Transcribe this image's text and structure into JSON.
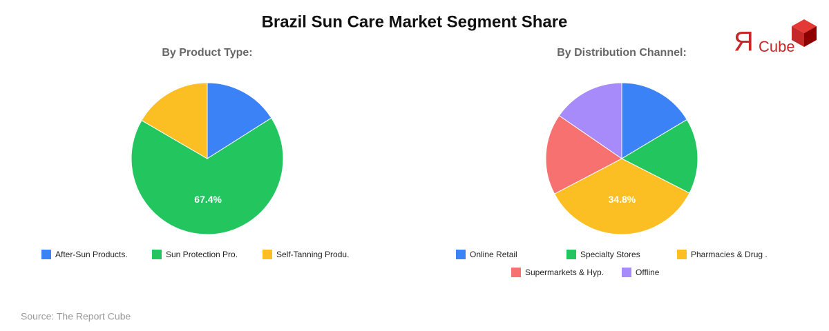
{
  "title": "Brazil Sun Care Market Segment Share",
  "source": "Source: The Report Cube",
  "logo": {
    "mark": "Я",
    "text": "Cube"
  },
  "chart_data": [
    {
      "type": "pie",
      "subtitle": "By Product Type:",
      "categories": [
        "After-Sun Products.",
        "Sun Protection Pro.",
        "Self-Tanning Produ."
      ],
      "values": [
        16.0,
        67.4,
        16.6
      ],
      "value_labels": [
        null,
        "67.4%",
        null
      ],
      "colors": [
        "#3b82f6",
        "#22c55e",
        "#fbbf24"
      ]
    },
    {
      "type": "pie",
      "subtitle": "By Distribution Channel:",
      "categories": [
        "Online Retail",
        "Specialty Stores",
        "Pharmacies & Drug .",
        "Supermarkets & Hyp.",
        "Offline"
      ],
      "values": [
        16.4,
        16.1,
        34.8,
        17.3,
        15.4
      ],
      "value_labels": [
        null,
        null,
        "34.8%",
        null,
        null
      ],
      "colors": [
        "#3b82f6",
        "#22c55e",
        "#fbbf24",
        "#f87171",
        "#a78bfa"
      ]
    }
  ]
}
